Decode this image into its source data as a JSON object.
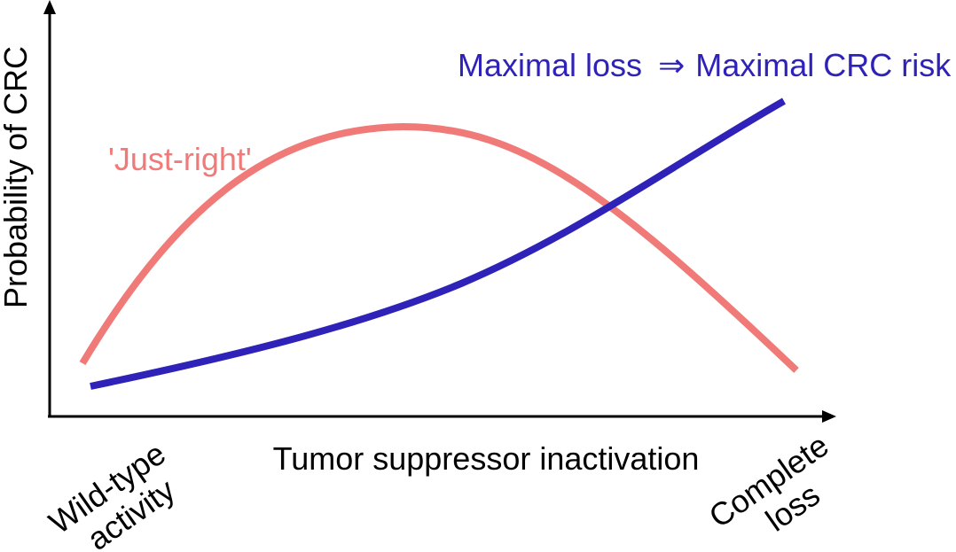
{
  "diagram": {
    "axes": {
      "y_label": "Probability of CRC",
      "x_label": "Tumor suppressor inactivation",
      "x_start_label": [
        "Wild-type",
        "activity"
      ],
      "x_end_label": [
        "Complete",
        "loss"
      ]
    },
    "curves": [
      {
        "id": "just-right",
        "label": "'Just-right'",
        "color": "#f07a78",
        "shape": "rise-then-fall"
      },
      {
        "id": "maximal-loss",
        "label_parts": [
          "Maximal loss",
          "⇒",
          "Maximal CRC risk"
        ],
        "color": "#2e22b8",
        "shape": "monotonic-increase"
      }
    ]
  }
}
